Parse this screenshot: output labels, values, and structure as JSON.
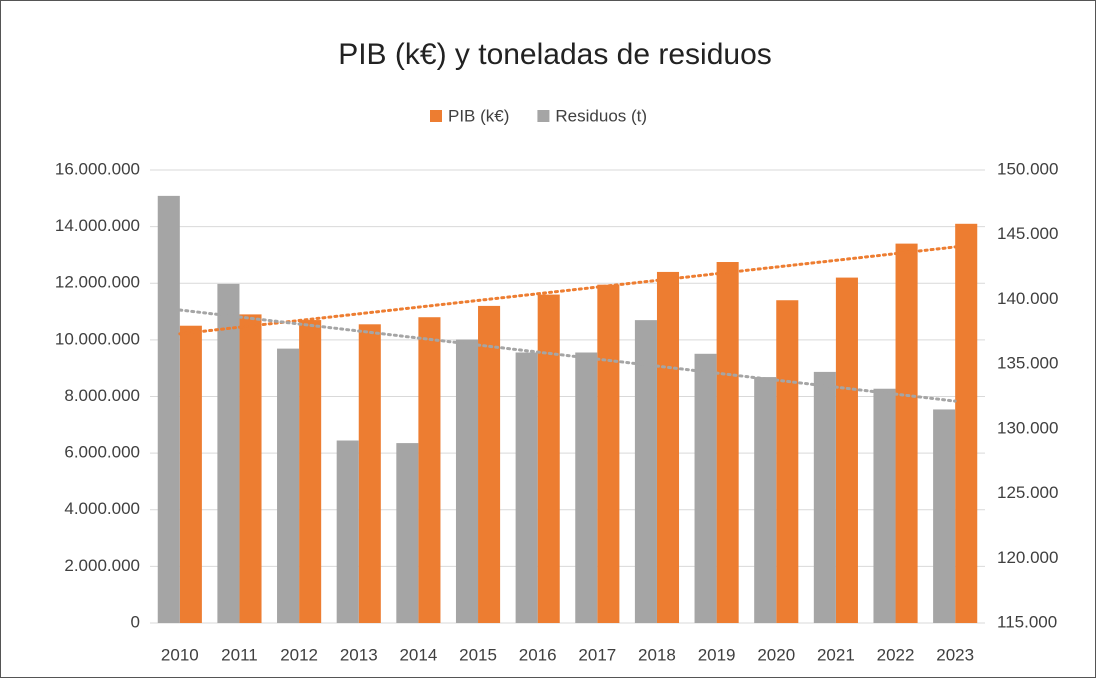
{
  "chart_data": {
    "type": "bar",
    "title": "PIB (k€) y toneladas de residuos",
    "categories": [
      "2010",
      "2011",
      "2012",
      "2013",
      "2014",
      "2015",
      "2016",
      "2017",
      "2018",
      "2019",
      "2020",
      "2021",
      "2022",
      "2023"
    ],
    "series": [
      {
        "name": "PIB (k€)",
        "color": "#ed7d31",
        "axis": "y",
        "values": [
          10500000,
          10900000,
          10700000,
          10550000,
          10800000,
          11200000,
          11600000,
          11950000,
          12400000,
          12750000,
          11400000,
          12200000,
          13400000,
          14100000
        ]
      },
      {
        "name": "Residuos (t)",
        "color": "#a5a5a5",
        "axis": "y2",
        "values": [
          148000,
          141200,
          136200,
          129100,
          128900,
          136900,
          135900,
          135900,
          138400,
          135800,
          134000,
          134400,
          133100,
          131500
        ]
      }
    ],
    "ylim": [
      0,
      16000000
    ],
    "yticks": [
      0,
      {
        "value": 2000000,
        "label": "2.000.000"
      },
      {
        "value": 4000000,
        "label": "4.000.000"
      },
      {
        "value": 6000000,
        "label": "6.000.000"
      },
      {
        "value": 8000000,
        "label": "8.000.000"
      },
      {
        "value": 10000000,
        "label": "10.000.000"
      },
      {
        "value": 12000000,
        "label": "12.000.000"
      },
      {
        "value": 14000000,
        "label": "14.000.000"
      },
      {
        "value": 16000000,
        "label": "16.000.000"
      }
    ],
    "y2lim": [
      115000,
      150000
    ],
    "y2ticks": [
      {
        "value": 115000,
        "label": "115.000"
      },
      {
        "value": 120000,
        "label": "120.000"
      },
      {
        "value": 125000,
        "label": "125.000"
      },
      {
        "value": 130000,
        "label": "130.000"
      },
      {
        "value": 135000,
        "label": "135.000"
      },
      {
        "value": 140000,
        "label": "140.000"
      },
      {
        "value": 145000,
        "label": "145.000"
      },
      {
        "value": 150000,
        "label": "150.000"
      }
    ],
    "grid": true,
    "legend": "top",
    "trendlines": true
  }
}
